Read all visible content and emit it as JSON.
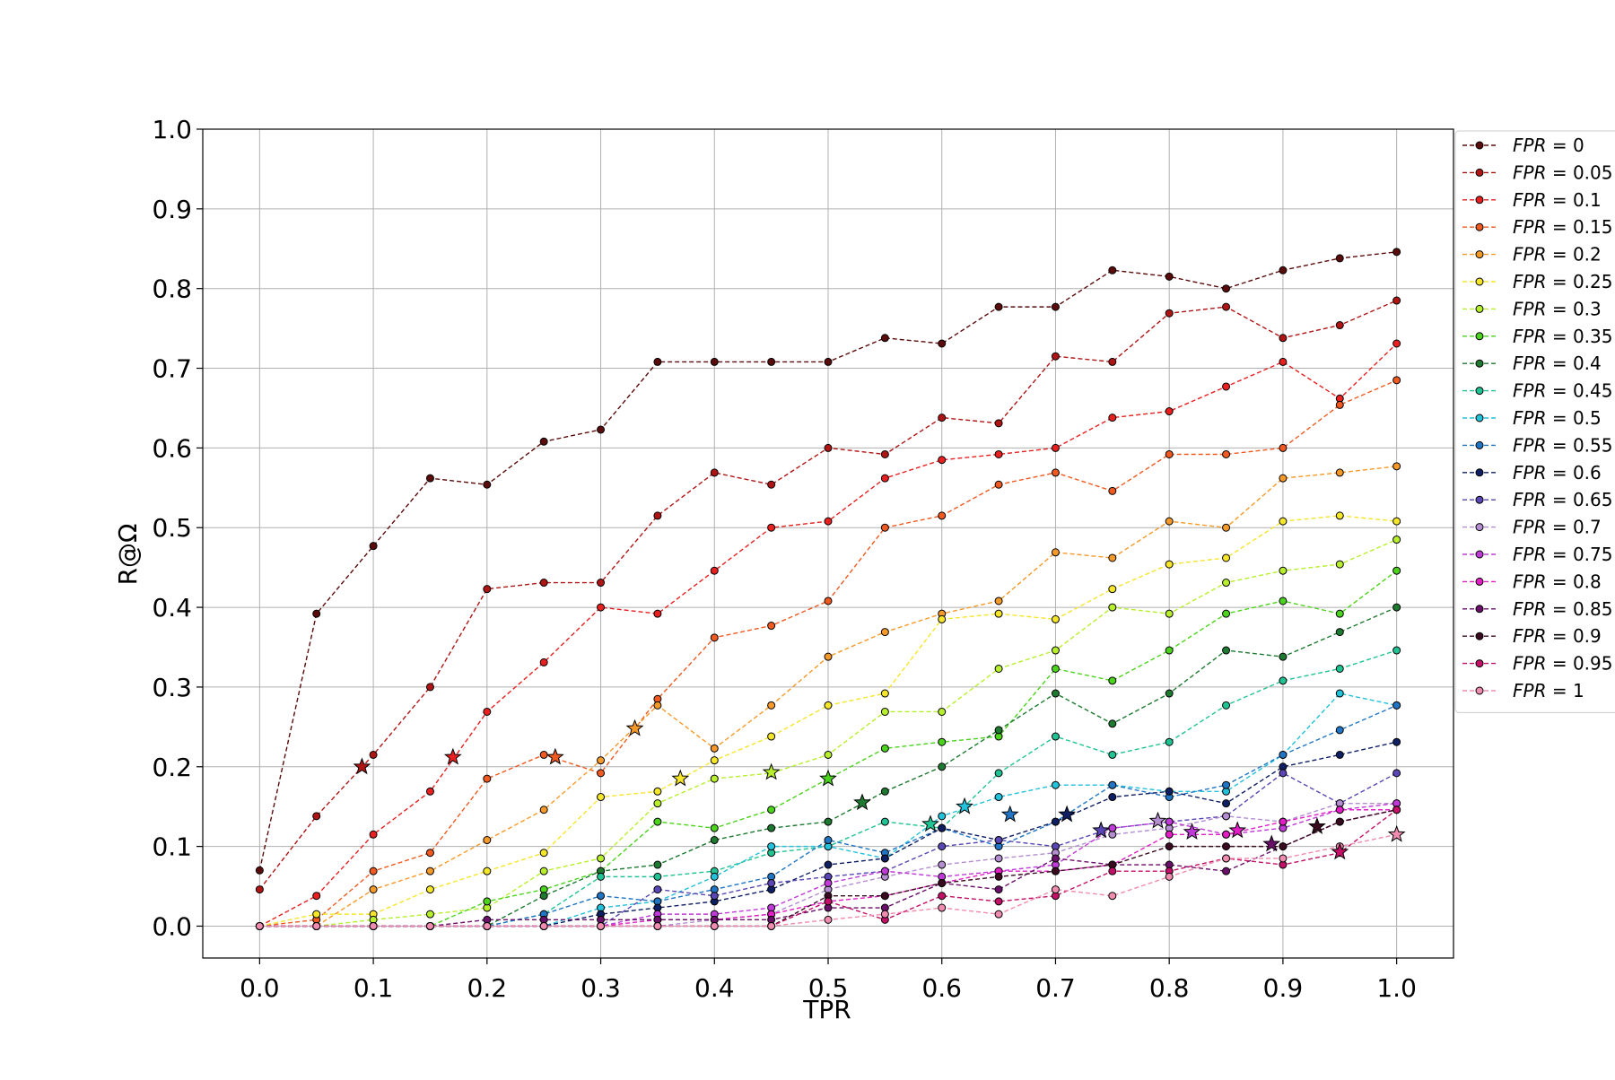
{
  "chart_data": {
    "type": "line",
    "title": "",
    "xlabel": "TPR",
    "ylabel": "R@Ω",
    "xlim": [
      -0.05,
      1.05
    ],
    "ylim": [
      -0.04,
      1.0
    ],
    "x_ticks": [
      "0.0",
      "0.1",
      "0.2",
      "0.3",
      "0.4",
      "0.5",
      "0.6",
      "0.7",
      "0.8",
      "0.9",
      "1.0"
    ],
    "y_ticks": [
      "0.0",
      "0.1",
      "0.2",
      "0.3",
      "0.4",
      "0.5",
      "0.6",
      "0.7",
      "0.8",
      "0.9",
      "1.0"
    ],
    "grid": true,
    "legend_position": "right",
    "line_style": "dashed",
    "x": [
      0.0,
      0.05,
      0.1,
      0.15,
      0.2,
      0.25,
      0.3,
      0.35,
      0.4,
      0.45,
      0.5,
      0.55,
      0.6,
      0.65,
      0.7,
      0.75,
      0.8,
      0.85,
      0.9,
      0.95,
      1.0
    ],
    "series": [
      {
        "name": "FPR = 0",
        "legend_var": "FPR",
        "legend_val": "0",
        "color": "#5a0c0c",
        "values": [
          0.07,
          0.392,
          0.477,
          0.562,
          0.554,
          0.608,
          0.623,
          0.708,
          0.708,
          0.708,
          0.708,
          0.738,
          0.731,
          0.777,
          0.777,
          0.823,
          0.815,
          0.8,
          0.823,
          0.838,
          0.846
        ]
      },
      {
        "name": "FPR = 0.05",
        "legend_var": "FPR",
        "legend_val": "0.05",
        "color": "#b01515",
        "values": [
          0.046,
          0.138,
          0.215,
          0.3,
          0.423,
          0.431,
          0.431,
          0.515,
          0.569,
          0.554,
          0.6,
          0.592,
          0.638,
          0.631,
          0.715,
          0.708,
          0.769,
          0.777,
          0.738,
          0.754,
          0.785
        ],
        "star": [
          0.09,
          0.2
        ]
      },
      {
        "name": "FPR = 0.1",
        "legend_var": "FPR",
        "legend_val": "0.1",
        "color": "#e82020",
        "values": [
          0.0,
          0.038,
          0.115,
          0.169,
          0.269,
          0.331,
          0.4,
          0.392,
          0.446,
          0.5,
          0.508,
          0.562,
          0.585,
          0.592,
          0.6,
          0.638,
          0.646,
          0.677,
          0.708,
          0.662,
          0.731
        ],
        "star": [
          0.17,
          0.212
        ]
      },
      {
        "name": "FPR = 0.15",
        "legend_var": "FPR",
        "legend_val": "0.15",
        "color": "#f05a20",
        "values": [
          0.0,
          0.008,
          0.069,
          0.092,
          0.185,
          0.215,
          0.192,
          0.285,
          0.362,
          0.377,
          0.408,
          0.5,
          0.515,
          0.554,
          0.569,
          0.546,
          0.592,
          0.592,
          0.6,
          0.654,
          0.685
        ],
        "star": [
          0.26,
          0.212
        ]
      },
      {
        "name": "FPR = 0.2",
        "legend_var": "FPR",
        "legend_val": "0.2",
        "color": "#f59a28",
        "values": [
          0.0,
          0.0,
          0.046,
          0.069,
          0.108,
          0.146,
          0.208,
          0.277,
          0.223,
          0.277,
          0.338,
          0.369,
          0.392,
          0.408,
          0.469,
          0.462,
          0.508,
          0.5,
          0.562,
          0.569,
          0.577
        ],
        "star": [
          0.33,
          0.248
        ]
      },
      {
        "name": "FPR = 0.25",
        "legend_var": "FPR",
        "legend_val": "0.25",
        "color": "#f5e62a",
        "values": [
          0.0,
          0.015,
          0.015,
          0.046,
          0.069,
          0.092,
          0.162,
          0.169,
          0.208,
          0.238,
          0.277,
          0.292,
          0.385,
          0.392,
          0.385,
          0.423,
          0.454,
          0.462,
          0.508,
          0.515,
          0.508
        ],
        "star": [
          0.37,
          0.185
        ]
      },
      {
        "name": "FPR = 0.3",
        "legend_var": "FPR",
        "legend_val": "0.3",
        "color": "#b8ef2c",
        "values": [
          0.0,
          0.0,
          0.008,
          0.015,
          0.023,
          0.069,
          0.085,
          0.154,
          0.185,
          0.192,
          0.215,
          0.269,
          0.269,
          0.323,
          0.346,
          0.4,
          0.392,
          0.431,
          0.446,
          0.454,
          0.485
        ],
        "star": [
          0.45,
          0.193
        ]
      },
      {
        "name": "FPR = 0.35",
        "legend_var": "FPR",
        "legend_val": "0.35",
        "color": "#4cd41c",
        "values": [
          0.0,
          0.0,
          0.0,
          0.0,
          0.031,
          0.046,
          0.069,
          0.131,
          0.123,
          0.146,
          0.185,
          0.223,
          0.231,
          0.238,
          0.323,
          0.308,
          0.346,
          0.392,
          0.408,
          0.392,
          0.446
        ],
        "star": [
          0.5,
          0.185
        ]
      },
      {
        "name": "FPR = 0.4",
        "legend_var": "FPR",
        "legend_val": "0.4",
        "color": "#1e7a30",
        "values": [
          0.0,
          0.0,
          0.0,
          0.0,
          0.0,
          0.038,
          0.069,
          0.077,
          0.108,
          0.123,
          0.131,
          0.169,
          0.2,
          0.246,
          0.292,
          0.254,
          0.292,
          0.346,
          0.338,
          0.369,
          0.4
        ],
        "star": [
          0.53,
          0.155
        ]
      },
      {
        "name": "FPR = 0.45",
        "legend_var": "FPR",
        "legend_val": "0.45",
        "color": "#20c494",
        "values": [
          0.0,
          0.0,
          0.0,
          0.0,
          0.0,
          0.015,
          0.062,
          0.062,
          0.069,
          0.092,
          0.1,
          0.131,
          0.123,
          0.192,
          0.238,
          0.215,
          0.231,
          0.277,
          0.308,
          0.323,
          0.346
        ],
        "star": [
          0.59,
          0.128
        ]
      },
      {
        "name": "FPR = 0.5",
        "legend_var": "FPR",
        "legend_val": "0.5",
        "color": "#22c2da",
        "values": [
          0.0,
          0.0,
          0.0,
          0.0,
          0.0,
          0.0,
          0.023,
          0.031,
          0.062,
          0.1,
          0.1,
          0.085,
          0.138,
          0.162,
          0.177,
          0.177,
          0.169,
          0.169,
          0.215,
          0.292,
          0.277
        ],
        "star": [
          0.62,
          0.15
        ]
      },
      {
        "name": "FPR = 0.55",
        "legend_var": "FPR",
        "legend_val": "0.55",
        "color": "#2076c4",
        "values": [
          0.0,
          0.0,
          0.0,
          0.0,
          0.0,
          0.015,
          0.038,
          0.031,
          0.046,
          0.062,
          0.108,
          0.092,
          0.123,
          0.1,
          0.131,
          0.177,
          0.162,
          0.177,
          0.215,
          0.246,
          0.277
        ],
        "star": [
          0.66,
          0.14
        ]
      },
      {
        "name": "FPR = 0.6",
        "legend_var": "FPR",
        "legend_val": "0.6",
        "color": "#0f1f63",
        "values": [
          0.0,
          0.0,
          0.0,
          0.0,
          0.0,
          0.0,
          0.015,
          0.023,
          0.031,
          0.046,
          0.077,
          0.085,
          0.123,
          0.108,
          0.131,
          0.162,
          0.169,
          0.154,
          0.2,
          0.215,
          0.231
        ],
        "star": [
          0.71,
          0.14
        ]
      },
      {
        "name": "FPR = 0.65",
        "legend_var": "FPR",
        "legend_val": "0.65",
        "color": "#5a46b4",
        "values": [
          0.0,
          0.0,
          0.0,
          0.0,
          0.0,
          0.0,
          0.0,
          0.046,
          0.038,
          0.054,
          0.062,
          0.069,
          0.1,
          0.108,
          0.1,
          0.123,
          0.131,
          0.138,
          0.192,
          0.154,
          0.192
        ],
        "star": [
          0.74,
          0.12
        ]
      },
      {
        "name": "FPR = 0.7",
        "legend_var": "FPR",
        "legend_val": "0.7",
        "color": "#b48ed0",
        "values": [
          0.0,
          0.0,
          0.0,
          0.0,
          0.0,
          0.0,
          0.0,
          0.0,
          0.008,
          0.015,
          0.046,
          0.062,
          0.077,
          0.085,
          0.092,
          0.115,
          0.123,
          0.138,
          0.131,
          0.154,
          0.154
        ],
        "star": [
          0.79,
          0.132
        ]
      },
      {
        "name": "FPR = 0.75",
        "legend_var": "FPR",
        "legend_val": "0.75",
        "color": "#c03ad8",
        "values": [
          0.0,
          0.0,
          0.0,
          0.0,
          0.0,
          0.0,
          0.0,
          0.015,
          0.015,
          0.023,
          0.054,
          0.069,
          0.062,
          0.069,
          0.077,
          0.123,
          0.131,
          0.115,
          0.123,
          0.146,
          0.154
        ],
        "star": [
          0.82,
          0.118
        ]
      },
      {
        "name": "FPR = 0.8",
        "legend_var": "FPR",
        "legend_val": "0.8",
        "color": "#e21ec4",
        "values": [
          0.0,
          0.0,
          0.0,
          0.0,
          0.0,
          0.0,
          0.0,
          0.008,
          0.008,
          0.015,
          0.031,
          0.038,
          0.054,
          0.069,
          0.069,
          0.077,
          0.115,
          0.115,
          0.131,
          0.146,
          0.146
        ],
        "star": [
          0.86,
          0.12
        ]
      },
      {
        "name": "FPR = 0.85",
        "legend_var": "FPR",
        "legend_val": "0.85",
        "color": "#6a0f6a",
        "values": [
          0.0,
          0.0,
          0.0,
          0.0,
          0.008,
          0.008,
          0.008,
          0.008,
          0.008,
          0.008,
          0.023,
          0.023,
          0.054,
          0.046,
          0.085,
          0.077,
          0.077,
          0.069,
          0.1,
          0.131,
          0.146
        ],
        "star": [
          0.89,
          0.103
        ]
      },
      {
        "name": "FPR = 0.9",
        "legend_var": "FPR",
        "legend_val": "0.9",
        "color": "#3a0a20",
        "values": [
          0.0,
          0.0,
          0.0,
          0.0,
          0.0,
          0.0,
          0.0,
          0.0,
          0.0,
          0.0,
          0.038,
          0.038,
          0.054,
          0.062,
          0.069,
          0.077,
          0.1,
          0.1,
          0.1,
          0.131,
          0.146
        ],
        "star": [
          0.93,
          0.125
        ]
      },
      {
        "name": "FPR = 0.95",
        "legend_var": "FPR",
        "legend_val": "0.95",
        "color": "#c41068",
        "values": [
          0.0,
          0.0,
          0.0,
          0.0,
          0.0,
          0.0,
          0.0,
          0.0,
          0.0,
          0.0,
          0.031,
          0.008,
          0.038,
          0.031,
          0.038,
          0.069,
          0.069,
          0.085,
          0.077,
          0.092,
          0.146
        ],
        "star": [
          0.95,
          0.093
        ]
      },
      {
        "name": "FPR = 1",
        "legend_var": "FPR",
        "legend_val": "1",
        "color": "#f08cb0",
        "values": [
          0.0,
          0.0,
          0.0,
          0.0,
          0.0,
          0.0,
          0.0,
          0.0,
          0.0,
          0.0,
          0.008,
          0.015,
          0.023,
          0.015,
          0.046,
          0.038,
          0.062,
          0.085,
          0.085,
          0.1,
          0.115
        ],
        "star": [
          1.0,
          0.115
        ]
      }
    ]
  }
}
